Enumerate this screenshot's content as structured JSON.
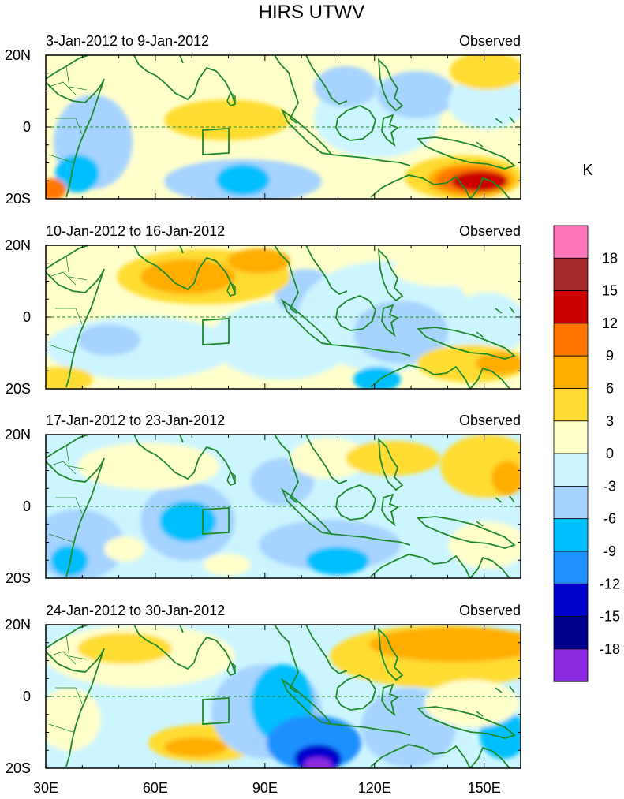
{
  "figure": {
    "title": "HIRS UTWV",
    "colorbar_unit": "K",
    "x_ticks": [
      "30E",
      "60E",
      "90E",
      "120E",
      "150E"
    ],
    "y_ticks": [
      "20N",
      "0",
      "20S"
    ],
    "lon_range": [
      30,
      160
    ],
    "lat_range": [
      -20,
      20
    ]
  },
  "panels": [
    {
      "period": "3-Jan-2012 to 9-Jan-2012",
      "label": "Observed"
    },
    {
      "period": "10-Jan-2012 to 16-Jan-2012",
      "label": "Observed"
    },
    {
      "period": "17-Jan-2012 to 23-Jan-2012",
      "label": "Observed"
    },
    {
      "period": "24-Jan-2012 to 30-Jan-2012",
      "label": "Observed"
    }
  ],
  "colorbar": {
    "labels": [
      "18",
      "15",
      "12",
      "9",
      "6",
      "3",
      "0",
      "-3",
      "-6",
      "-9",
      "-12",
      "-15",
      "-18"
    ],
    "colors": [
      "#ff77bb",
      "#a52a2a",
      "#cc0000",
      "#ff7700",
      "#ffad00",
      "#ffdc33",
      "#ffffcc",
      "#cdf5ff",
      "#a6d3ff",
      "#00bfff",
      "#1e90ff",
      "#0000cd",
      "#00008b",
      "#8a2be2"
    ]
  },
  "style": {
    "coast_color": "#1f8a2a",
    "border_color": "#1f8a2a"
  }
}
